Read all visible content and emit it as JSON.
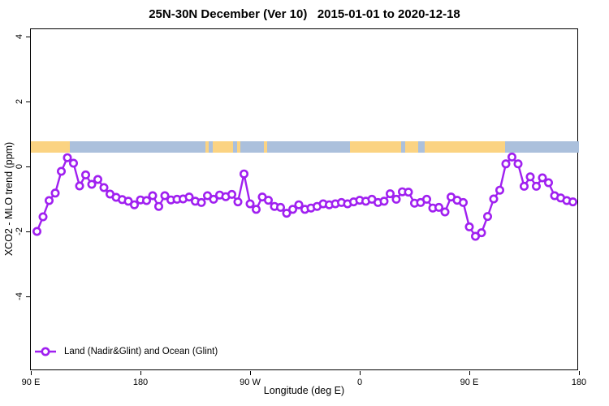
{
  "title": "25N-30N December (Ver 10)   2015-01-01 to 2020-12-18",
  "legend": {
    "label": "Land (Nadir&Glint) and Ocean (Glint)"
  },
  "colors": {
    "series": "#A020F0",
    "marker_fill": "#ffffff",
    "land": "#FBD382",
    "ocean": "#ABC0DC",
    "axis": "#000000"
  },
  "chart_data": {
    "type": "line",
    "title": "25N-30N December (Ver 10)   2015-01-01 to 2020-12-18",
    "xlabel": "Longitude (deg E)",
    "ylabel": "XCO2 - MLO trend (ppm)",
    "legend_position": "bottom-left",
    "grid": false,
    "x_range_deg_east": [
      90,
      540
    ],
    "ylim": [
      -6.3,
      4.225
    ],
    "x_ticks": [
      {
        "value": 90,
        "label": "90 E"
      },
      {
        "value": 180,
        "label": "180"
      },
      {
        "value": 270,
        "label": "90 W"
      },
      {
        "value": 360,
        "label": "0"
      },
      {
        "value": 450,
        "label": "90 E"
      },
      {
        "value": 540,
        "label": "180"
      }
    ],
    "y_ticks": [
      {
        "value": 4,
        "label": "4"
      },
      {
        "value": 2,
        "label": "2"
      },
      {
        "value": 0,
        "label": "0"
      },
      {
        "value": -2,
        "label": "-2"
      },
      {
        "value": -4,
        "label": "-4"
      }
    ],
    "surface_band": {
      "description": "land/ocean strip for 25N-30N",
      "y_top_value": 0.775,
      "y_bottom_value": 0.425,
      "segments": [
        {
          "from": 90,
          "to": 122,
          "type": "land"
        },
        {
          "from": 122,
          "to": 233,
          "type": "ocean"
        },
        {
          "from": 233,
          "to": 236,
          "type": "land"
        },
        {
          "from": 236,
          "to": 239,
          "type": "ocean"
        },
        {
          "from": 239,
          "to": 256,
          "type": "land"
        },
        {
          "from": 256,
          "to": 259,
          "type": "ocean"
        },
        {
          "from": 259,
          "to": 262,
          "type": "land"
        },
        {
          "from": 262,
          "to": 281,
          "type": "ocean"
        },
        {
          "from": 281,
          "to": 284,
          "type": "land"
        },
        {
          "from": 284,
          "to": 352,
          "type": "ocean"
        },
        {
          "from": 352,
          "to": 394,
          "type": "land"
        },
        {
          "from": 394,
          "to": 397,
          "type": "ocean"
        },
        {
          "from": 397,
          "to": 408,
          "type": "land"
        },
        {
          "from": 408,
          "to": 413,
          "type": "ocean"
        },
        {
          "from": 413,
          "to": 479,
          "type": "land"
        },
        {
          "from": 479,
          "to": 540,
          "type": "ocean"
        }
      ]
    },
    "series": [
      {
        "name": "Land (Nadir&Glint) and Ocean (Glint)",
        "marker": "open-circle",
        "color": "#A020F0",
        "x": [
          95,
          100,
          105,
          110,
          115,
          120,
          125,
          130,
          135,
          140,
          145,
          150,
          155,
          160,
          165,
          170,
          175,
          180,
          185,
          190,
          195,
          200,
          205,
          210,
          215,
          220,
          225,
          230,
          235,
          240,
          245,
          250,
          255,
          260,
          265,
          270,
          275,
          280,
          285,
          290,
          295,
          300,
          305,
          310,
          315,
          320,
          325,
          330,
          335,
          340,
          345,
          350,
          355,
          360,
          365,
          370,
          375,
          380,
          385,
          390,
          395,
          400,
          405,
          410,
          415,
          420,
          425,
          430,
          435,
          440,
          445,
          450,
          455,
          460,
          465,
          470,
          475,
          480,
          485,
          490,
          495,
          500,
          505,
          510,
          515,
          520,
          525,
          530,
          535
        ],
        "y": [
          -2.0,
          -1.55,
          -1.05,
          -0.82,
          -0.15,
          0.27,
          0.1,
          -0.6,
          -0.26,
          -0.55,
          -0.4,
          -0.65,
          -0.85,
          -0.95,
          -1.02,
          -1.07,
          -1.18,
          -1.03,
          -1.05,
          -0.9,
          -1.23,
          -0.9,
          -1.03,
          -1.01,
          -1.0,
          -0.94,
          -1.07,
          -1.11,
          -0.9,
          -1.01,
          -0.88,
          -0.93,
          -0.86,
          -1.09,
          -0.23,
          -1.15,
          -1.32,
          -0.94,
          -1.04,
          -1.23,
          -1.26,
          -1.44,
          -1.32,
          -1.18,
          -1.32,
          -1.28,
          -1.23,
          -1.15,
          -1.18,
          -1.15,
          -1.11,
          -1.15,
          -1.09,
          -1.04,
          -1.07,
          -1.01,
          -1.11,
          -1.07,
          -0.84,
          -1.01,
          -0.78,
          -0.79,
          -1.13,
          -1.11,
          -1.01,
          -1.28,
          -1.26,
          -1.4,
          -0.94,
          -1.04,
          -1.11,
          -1.86,
          -2.15,
          -2.04,
          -1.54,
          -1.0,
          -0.73,
          0.08,
          0.29,
          0.08,
          -0.61,
          -0.32,
          -0.61,
          -0.35,
          -0.5,
          -0.9,
          -0.97,
          -1.05,
          -1.09
        ]
      }
    ]
  }
}
